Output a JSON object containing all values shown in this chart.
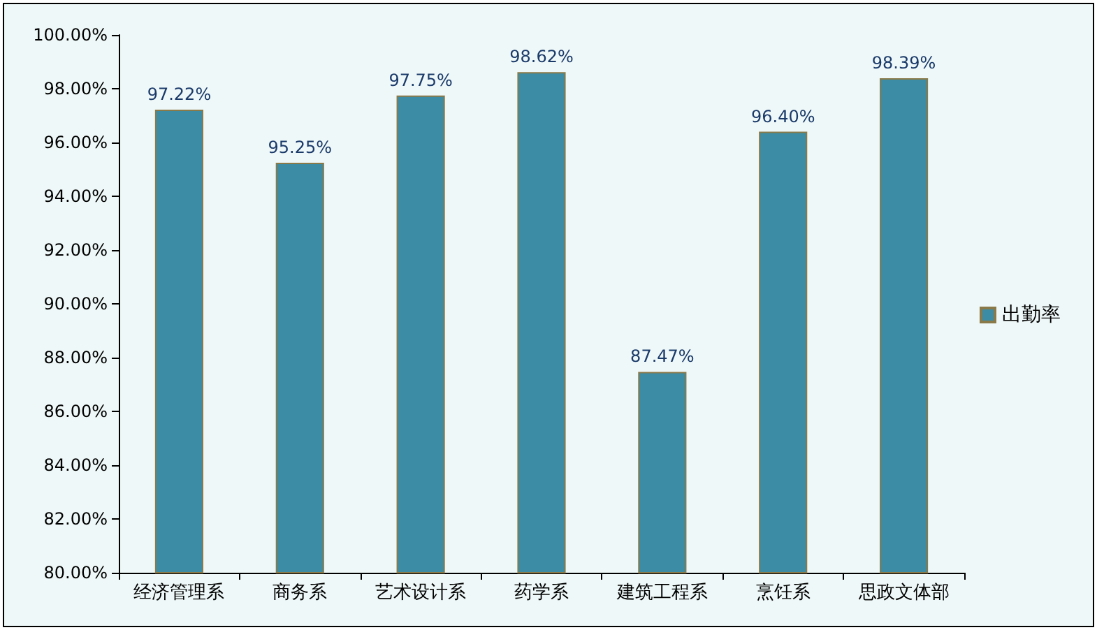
{
  "chart_data": {
    "type": "bar",
    "categories": [
      "经济管理系",
      "商务系",
      "艺术设计系",
      "药学系",
      "建筑工程系",
      "烹饪系",
      "思政文体部"
    ],
    "series": [
      {
        "name": "出勤率",
        "color": "#3b8ca4",
        "values": [
          97.22,
          95.25,
          97.75,
          98.62,
          87.47,
          96.4,
          98.39
        ],
        "value_labels": [
          "97.22%",
          "95.25%",
          "97.75%",
          "98.62%",
          "87.47%",
          "96.40%",
          "98.39%"
        ]
      }
    ],
    "ylim": [
      80,
      100
    ],
    "yticks": [
      {
        "value": 80,
        "label": "80.00%"
      },
      {
        "value": 82,
        "label": "82.00%"
      },
      {
        "value": 84,
        "label": "84.00%"
      },
      {
        "value": 86,
        "label": "86.00%"
      },
      {
        "value": 88,
        "label": "88.00%"
      },
      {
        "value": 90,
        "label": "90.00%"
      },
      {
        "value": 92,
        "label": "92.00%"
      },
      {
        "value": 94,
        "label": "94.00%"
      },
      {
        "value": 96,
        "label": "96.00%"
      },
      {
        "value": 98,
        "label": "98.00%"
      },
      {
        "value": 100,
        "label": "100.00%"
      }
    ],
    "grid": false,
    "legend": "right"
  }
}
